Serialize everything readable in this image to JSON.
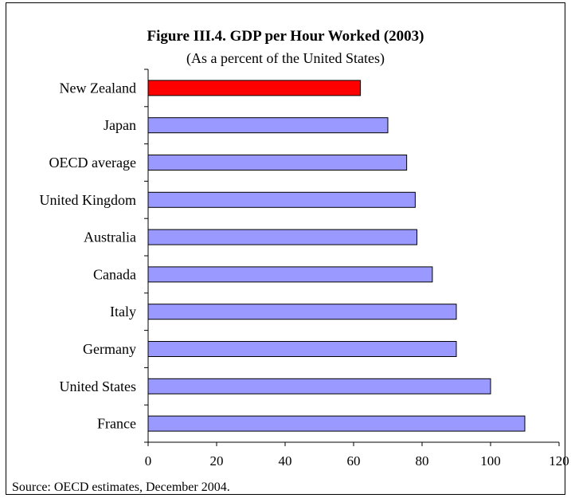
{
  "chart_data": {
    "type": "bar",
    "orientation": "horizontal",
    "title": "Figure III.4. GDP per Hour Worked (2003)",
    "subtitle": "(As a percent of the United States)",
    "categories": [
      "New Zealand",
      "Japan",
      "OECD average",
      "United Kingdom",
      "Australia",
      "Canada",
      "Italy",
      "Germany",
      "United States",
      "France"
    ],
    "values": [
      62,
      70,
      75.5,
      78,
      78.5,
      83,
      90,
      90,
      100,
      110
    ],
    "highlight": "New Zealand",
    "colors": {
      "bar": "#9999ff",
      "highlight": "#ff0000",
      "outline": "#000000"
    },
    "xlim": [
      0,
      120
    ],
    "xticks": [
      0,
      20,
      40,
      60,
      80,
      100,
      120
    ],
    "grid": false,
    "source": "Source: OECD estimates, December 2004."
  }
}
